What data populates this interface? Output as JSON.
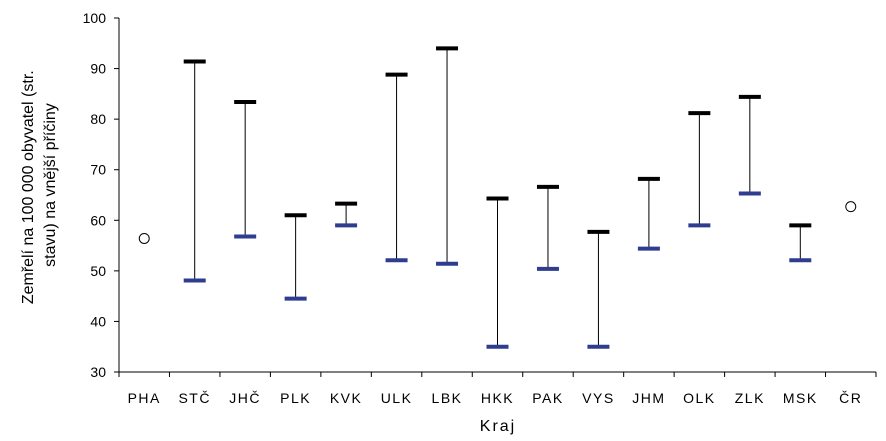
{
  "chart_data": {
    "type": "range",
    "title": "",
    "xlabel": "Kraj",
    "ylabel_lines": [
      "Zemřelí na 100 000 obyvatel (str.",
      "stavu) na vnější příčiny"
    ],
    "ylim": [
      30,
      100
    ],
    "yticks": [
      30,
      40,
      50,
      60,
      70,
      80,
      90,
      100
    ],
    "grid": false,
    "legend": "none",
    "colors": {
      "high": "#000000",
      "low": "#2e3d8f",
      "line": "#000000"
    },
    "categories": [
      "PHA",
      "STČ",
      "JHČ",
      "PLK",
      "KVK",
      "ULK",
      "LBK",
      "HKK",
      "PAK",
      "VYS",
      "JHM",
      "OLK",
      "ZLK",
      "MSK",
      "ČR"
    ],
    "series": [
      {
        "name": "high",
        "values": [
          null,
          91.4,
          83.4,
          61.0,
          63.3,
          88.8,
          94.0,
          64.3,
          66.6,
          57.7,
          68.2,
          81.2,
          84.4,
          59.0,
          null
        ]
      },
      {
        "name": "low",
        "values": [
          null,
          48.1,
          56.8,
          44.5,
          59.0,
          52.1,
          51.4,
          35.0,
          50.4,
          35.0,
          54.4,
          59.0,
          65.3,
          52.1,
          null
        ]
      },
      {
        "name": "value",
        "values": [
          56.4,
          null,
          null,
          null,
          null,
          null,
          null,
          null,
          null,
          null,
          null,
          null,
          null,
          null,
          62.7
        ]
      }
    ]
  }
}
